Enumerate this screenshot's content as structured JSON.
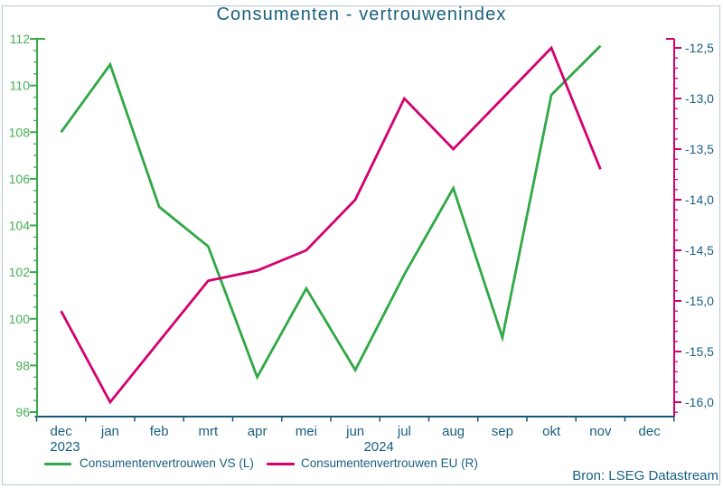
{
  "title": "Consumenten - vertrouwenindex",
  "source": "Bron: LSEG Datastream",
  "legend": {
    "vs_label": "Consumentenvertrouwen VS (L)",
    "eu_label": "Consumentenvertrouwen EU (R)"
  },
  "colors": {
    "vs_green": "#2fa845",
    "eu_pink": "#d40070",
    "teal_text": "#19607f",
    "x_axis": "#1a5878",
    "left_axis_green": "#3aaa4c",
    "left_label_green": "#46b156",
    "page_border": "#b7c9da"
  },
  "chart_data": {
    "type": "line",
    "title": "Consumenten - vertrouwenindex",
    "source": "Bron: LSEG Datastream",
    "grid": false,
    "legend_position": "bottom",
    "x_categories": [
      "dec",
      "jan",
      "feb",
      "mrt",
      "apr",
      "mei",
      "jun",
      "jul",
      "aug",
      "sep",
      "okt",
      "nov",
      "dec"
    ],
    "year_labels": [
      {
        "text": "2023",
        "center_month": 0.58
      },
      {
        "text": "2024",
        "center_month": 6.98
      }
    ],
    "left_axis": {
      "title": "Consumentenvertrouwen VS (L)",
      "min": 96,
      "max": 112,
      "major_step": 2,
      "minor_step": 0.5,
      "tick_values": [
        96,
        98,
        100,
        102,
        104,
        106,
        108,
        110,
        112
      ],
      "tick_labels": [
        "96",
        "98",
        "100",
        "102",
        "104",
        "106",
        "108",
        "110",
        "112"
      ]
    },
    "right_axis": {
      "title": "Consumentenvertrouwen EU (R)",
      "min": -16.1,
      "max": -12.5,
      "major_step": 0.5,
      "minor_step": 0.1,
      "tick_values": [
        -12.5,
        -13.0,
        -13.5,
        -14.0,
        -14.5,
        -15.0,
        -15.5,
        -16.0
      ],
      "tick_labels": [
        "-12,5",
        "-13,0",
        "-13,5",
        "-14,0",
        "-14,5",
        "-15,0",
        "-15,5",
        "-16,0"
      ]
    },
    "series": [
      {
        "name": "Consumentenvertrouwen VS (L)",
        "axis": "left",
        "color": "#2fa845",
        "values": [
          108.0,
          110.9,
          104.8,
          103.1,
          97.5,
          101.3,
          97.8,
          101.9,
          105.6,
          99.2,
          109.6,
          111.7
        ]
      },
      {
        "name": "Consumentenvertrouwen EU (R)",
        "axis": "right",
        "color": "#d40070",
        "values": [
          -15.1,
          -16.0,
          -15.4,
          -14.8,
          -14.7,
          -14.5,
          -14.0,
          -13.0,
          -13.5,
          -13.0,
          -12.5,
          -13.7
        ]
      }
    ]
  }
}
